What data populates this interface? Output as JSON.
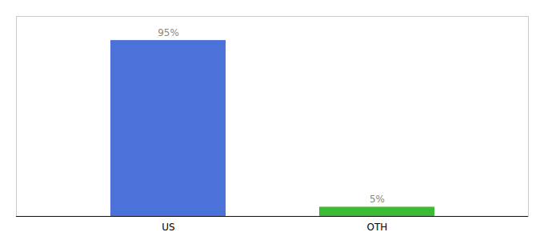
{
  "chart_data": {
    "type": "bar",
    "categories": [
      "US",
      "OTH"
    ],
    "values": [
      95,
      5
    ],
    "value_labels": [
      "95%",
      "5%"
    ],
    "colors": [
      "#4a72d9",
      "#3dbb35"
    ],
    "ylim": [
      0,
      108
    ],
    "data_labels": true,
    "tick_labels": "x",
    "grid": false
  }
}
